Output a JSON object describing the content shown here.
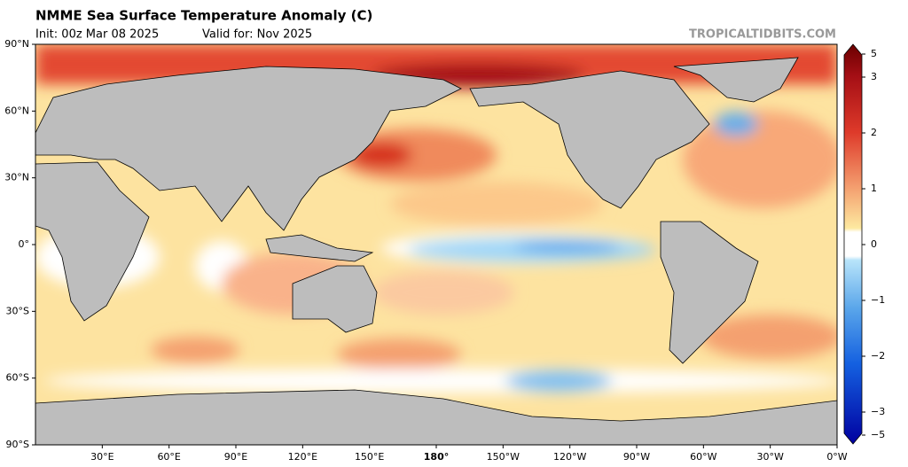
{
  "header": {
    "title": "NMME Sea Surface Temperature Anomaly (C)",
    "init": "Init: 00z Mar 08 2025",
    "valid": "Valid for: Nov 2025",
    "site": "TROPICALTIDBITS.COM"
  },
  "map": {
    "lat_labels": [
      "90°N",
      "60°N",
      "30°N",
      "0°",
      "30°S",
      "60°S",
      "90°S"
    ],
    "lon_labels": [
      "30°E",
      "60°E",
      "90°E",
      "120°E",
      "150°E",
      "180°",
      "150°W",
      "120°W",
      "90°W",
      "60°W",
      "30°W",
      "0°W"
    ]
  },
  "colorbar": {
    "ticks": [
      5,
      3,
      2,
      1,
      0,
      {
        "value": -1,
        "label": "−1"
      },
      {
        "value": -2,
        "label": "−2"
      },
      {
        "value": -3,
        "label": "−3"
      },
      {
        "value": -5,
        "label": "−5"
      }
    ]
  }
}
